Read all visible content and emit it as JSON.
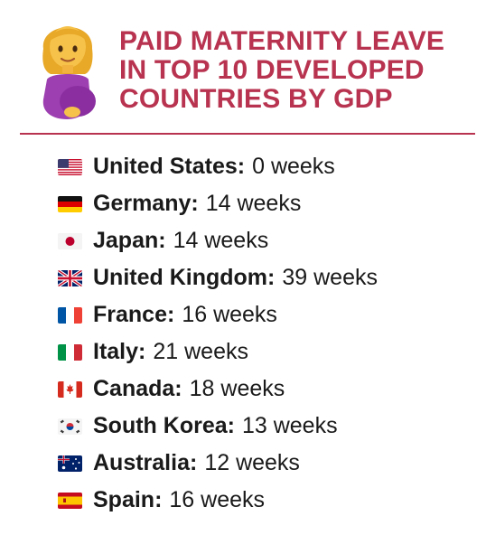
{
  "header": {
    "emoji_icon": "pregnant-woman-icon",
    "title_lines": [
      "PAID MATERNITY LEAVE",
      "IN TOP 10 DEVELOPED",
      "COUNTRIES BY GDP"
    ],
    "accent_color": "#b8334f"
  },
  "countries": [
    {
      "flag_icon": "us-flag-icon",
      "name": "United States:",
      "value": "0 weeks"
    },
    {
      "flag_icon": "germany-flag-icon",
      "name": "Germany:",
      "value": "14 weeks"
    },
    {
      "flag_icon": "japan-flag-icon",
      "name": "Japan:",
      "value": "14 weeks"
    },
    {
      "flag_icon": "uk-flag-icon",
      "name": "United Kingdom:",
      "value": "39 weeks"
    },
    {
      "flag_icon": "france-flag-icon",
      "name": "France:",
      "value": "16 weeks"
    },
    {
      "flag_icon": "italy-flag-icon",
      "name": "Italy:",
      "value": "21 weeks"
    },
    {
      "flag_icon": "canada-flag-icon",
      "name": "Canada:",
      "value": "18 weeks"
    },
    {
      "flag_icon": "south-korea-flag-icon",
      "name": "South Korea:",
      "value": "13 weeks"
    },
    {
      "flag_icon": "australia-flag-icon",
      "name": "Australia:",
      "value": "12 weeks"
    },
    {
      "flag_icon": "spain-flag-icon",
      "name": "Spain:",
      "value": "16 weeks"
    }
  ]
}
